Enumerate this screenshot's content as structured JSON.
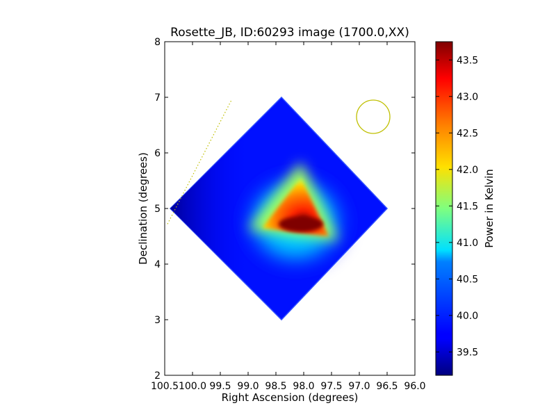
{
  "chart_data": {
    "type": "heatmap",
    "title": "Rosette_JB, ID:60293 image (1700.0,XX)",
    "xlabel": "Right Ascension (degrees)",
    "ylabel": "Declination (degrees)",
    "colorbar_label": "Power in Kelvin",
    "xlim": [
      100.5,
      96.0
    ],
    "ylim": [
      2,
      8
    ],
    "x_ticks": [
      100.5,
      100.0,
      99.5,
      99.0,
      98.5,
      98.0,
      97.5,
      97.0,
      96.5,
      96.0
    ],
    "x_tick_labels": [
      "100.5",
      "100.0",
      "99.5",
      "99.0",
      "98.5",
      "98.0",
      "97.5",
      "97.0",
      "96.5",
      "96.0"
    ],
    "y_ticks": [
      2,
      3,
      4,
      5,
      6,
      7,
      8
    ],
    "y_tick_labels": [
      "2",
      "3",
      "4",
      "5",
      "6",
      "7",
      "8"
    ],
    "colorbar_range": [
      39.18,
      43.75
    ],
    "colorbar_ticks": [
      39.5,
      40.0,
      40.5,
      41.0,
      41.5,
      42.0,
      42.5,
      43.0,
      43.5
    ],
    "colorbar_tick_labels": [
      "39.5",
      "40.0",
      "40.5",
      "41.0",
      "41.5",
      "42.0",
      "42.5",
      "43.0",
      "43.5"
    ],
    "colormap": "jet",
    "map_region": {
      "shape": "diamond",
      "vertices": [
        [
          98.4,
          7.0
        ],
        [
          96.5,
          5.0
        ],
        [
          98.4,
          3.0
        ],
        [
          100.4,
          5.0
        ]
      ],
      "background_value": 39.75
    },
    "hotspot": {
      "center": [
        98.05,
        4.72
      ],
      "peak_value": 43.75,
      "triangle": [
        [
          98.05,
          5.55
        ],
        [
          98.75,
          4.65
        ],
        [
          97.55,
          4.5
        ]
      ]
    },
    "beam_circle": {
      "center": [
        96.75,
        6.65
      ],
      "radius_deg": 0.3,
      "color": "#bfbf00"
    },
    "dotted_line": {
      "points": [
        [
          100.45,
          4.72
        ],
        [
          99.3,
          6.95
        ]
      ],
      "color": "#bfbf00"
    },
    "grid": false,
    "legend": "none"
  }
}
